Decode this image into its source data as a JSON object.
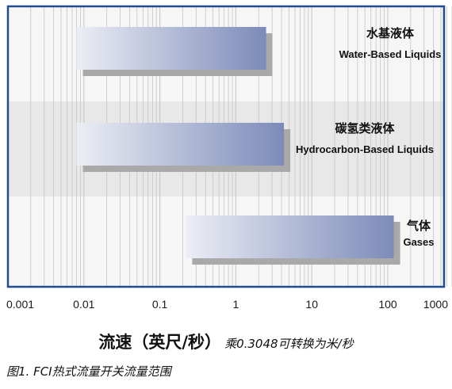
{
  "chart_data": {
    "type": "bar",
    "orientation": "horizontal",
    "x_scale": "log",
    "xlim": [
      0.001,
      1000
    ],
    "x_ticks": [
      "0.001",
      "0.01",
      "0.1",
      "1",
      "10",
      "100",
      "1000"
    ],
    "xlabel": "流速（英尺/秒）",
    "xlabel_note": "乘0.3048可转换为米/秒",
    "caption": "图1. FCI热式流量开关流量范围",
    "grid": true,
    "categories": [
      {
        "label_cn": "水基液体",
        "label_en": "Water-Based Liquids",
        "min": 0.008,
        "max": 2.5
      },
      {
        "label_cn": "碳氢类液体",
        "label_en": "Hydrocarbon-Based Liquids",
        "min": 0.008,
        "max": 4.3
      },
      {
        "label_cn": "气体",
        "label_en": "Gases",
        "min": 0.22,
        "max": 120
      }
    ],
    "colors": {
      "frame": "#1f4d8f",
      "band_shaded": "#e8e8e8",
      "band_light": "#f6f6f6",
      "bar_start": "#eceef5",
      "bar_end": "#7c8bb9",
      "shadow": "#a9a9a9",
      "grid": "#c4c4c4"
    }
  }
}
